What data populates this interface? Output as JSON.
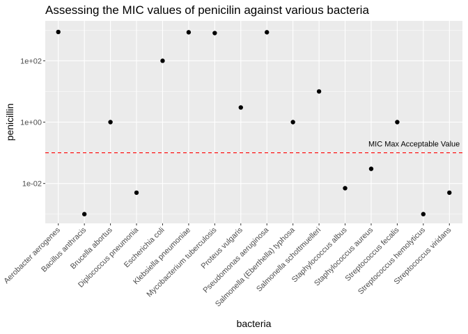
{
  "chart_data": {
    "type": "scatter",
    "title": "Assessing the MIC values of penicilin against various bacteria",
    "xlabel": "bacteria",
    "ylabel": "penicillin",
    "y_scale": "log10",
    "ylim": [
      0.0005,
      2000
    ],
    "y_ticks": [
      0.01,
      1,
      100
    ],
    "y_tick_labels": [
      "1e-02",
      "1e+00",
      "1e+02"
    ],
    "categories": [
      "Aerobacter aerogenes",
      "Bacillus anthracis",
      "Brucella abortus",
      "Diplococcus pneumonia",
      "Escherichia coli",
      "Klebsiella pneumoniae",
      "Mycobacterium tuberculosis",
      "Proteus vulgaris",
      "Pseudomonas aeruginosa",
      "Salmonella (Eberthella) typhosa",
      "Salmonella schottmuelleri",
      "Staphylococcus albus",
      "Staphylococcus aureus",
      "Streptococcus fecalis",
      "Streptococcus hemolyticus",
      "Streptococcus viridans"
    ],
    "values": [
      870,
      0.001,
      1,
      0.005,
      100,
      850,
      800,
      3,
      850,
      1,
      10,
      0.007,
      0.03,
      1,
      0.001,
      0.005
    ],
    "reference_line": {
      "y": 0.1,
      "label": "MIC Max Acceptable Value",
      "color": "#ff0000",
      "style": "dashed"
    },
    "point_color": "#000000",
    "panel_background": "#ebebeb",
    "grid": true,
    "legend": "none"
  }
}
